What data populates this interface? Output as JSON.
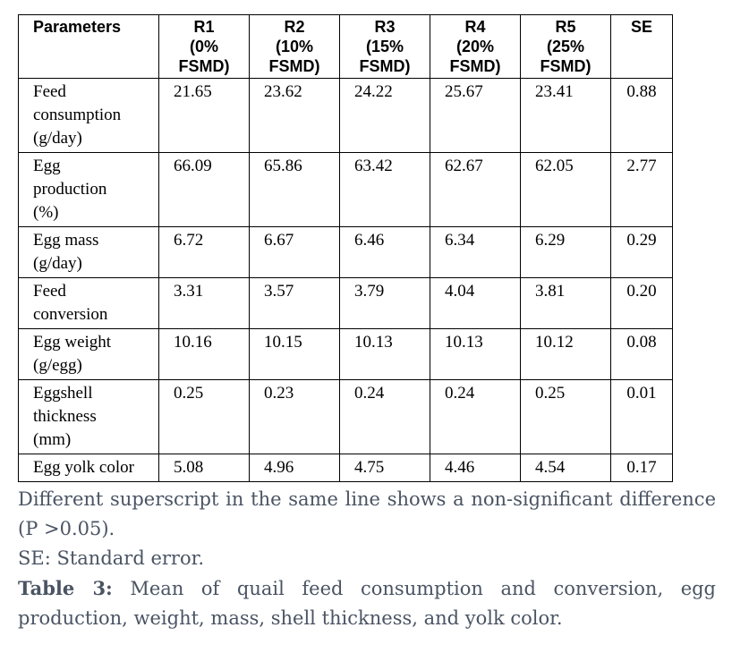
{
  "table": {
    "header": {
      "parameters": "Parameters",
      "r1": [
        "R1",
        "(0%",
        "FSMD)"
      ],
      "r2": [
        "R2",
        "(10%",
        "FSMD)"
      ],
      "r3": [
        "R3",
        "(15%",
        "FSMD)"
      ],
      "r4": [
        "R4",
        "(20%",
        "FSMD)"
      ],
      "r5": [
        "R5",
        "(25%",
        "FSMD)"
      ],
      "se": "SE"
    },
    "rows": [
      {
        "param": [
          "Feed",
          "consumption",
          "(g/day)"
        ],
        "r1": "21.65",
        "r2": "23.62",
        "r3": "24.22",
        "r4": "25.67",
        "r5": "23.41",
        "se": "0.88"
      },
      {
        "param": [
          "Egg",
          "production",
          "(%)"
        ],
        "r1": "66.09",
        "r2": "65.86",
        "r3": "63.42",
        "r4": "62.67",
        "r5": "62.05",
        "se": "2.77"
      },
      {
        "param": [
          "Egg mass",
          "(g/day)"
        ],
        "r1": "6.72",
        "r2": "6.67",
        "r3": "6.46",
        "r4": "6.34",
        "r5": "6.29",
        "se": "0.29"
      },
      {
        "param": [
          "Feed",
          "conversion"
        ],
        "r1": "3.31",
        "r2": "3.57",
        "r3": "3.79",
        "r4": "4.04",
        "r5": "3.81",
        "se": "0.20"
      },
      {
        "param": [
          "Egg weight",
          "(g/egg)"
        ],
        "r1": "10.16",
        "r2": "10.15",
        "r3": "10.13",
        "r4": "10.13",
        "r5": "10.12",
        "se": "0.08"
      },
      {
        "param": [
          "Eggshell",
          "thickness",
          "(mm)"
        ],
        "r1": "0.25",
        "r2": "0.23",
        "r3": "0.24",
        "r4": "0.24",
        "r5": "0.25",
        "se": "0.01"
      },
      {
        "param": [
          "Egg yolk color"
        ],
        "r1": "5.08",
        "r2": "4.96",
        "r3": "4.75",
        "r4": "4.46",
        "r5": "4.54",
        "se": "0.17"
      }
    ]
  },
  "notes": {
    "superscript_note": "Different superscript in the same line shows a non-significant difference (P >0.05).",
    "se_note": "SE: Standard error.",
    "caption_label": "Table 3:",
    "caption_text": " Mean of quail feed consumption and conversion, egg production, weight, mass, shell thickness, and yolk color."
  }
}
